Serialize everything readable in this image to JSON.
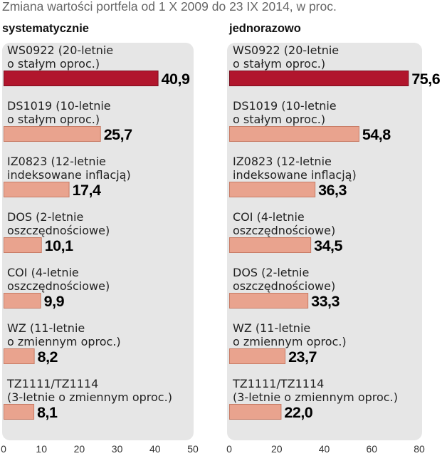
{
  "title": "Zmiana wartości portfela od 1 X 2009 do 23 IX 2014, w proc.",
  "colors": {
    "bar": "#e9a38e",
    "bar_outline": "#c87c66",
    "highlight": "#b1162d",
    "highlight_outline": "#7a0d1d",
    "panel_background": "#e6e6e6"
  },
  "chart_data": [
    {
      "type": "bar",
      "orientation": "horizontal",
      "title": "systematycznie",
      "categories": [
        "WS0922 (20-letnie\no stałym oproc.)",
        "DS1019 (10-letnie\no stałym oproc.)",
        "IZ0823 (12-letnie\nindeksowane inflacją)",
        "DOS (2-letnie\noszczędnościowe)",
        "COI (4-letnie\noszczędnościowe)",
        "WZ (11-letnie\no zmiennym oproc.)",
        "TZ1111/TZ1114\n(3-letnie o zmiennym oproc.)"
      ],
      "values": [
        40.9,
        25.7,
        17.4,
        10.1,
        9.9,
        8.2,
        8.1
      ],
      "highlight_index": 0,
      "xlim": [
        0,
        50
      ],
      "xticks": [
        0,
        10,
        20,
        30,
        40,
        50
      ],
      "grid": false
    },
    {
      "type": "bar",
      "orientation": "horizontal",
      "title": "jednorazowo",
      "categories": [
        "WS0922 (20-letnie\no stałym oproc.)",
        "DS1019 (10-letnie\no stałym oproc.)",
        "IZ0823 (12-letnie\nindeksowane inflacją)",
        "COI (4-letnie\noszczędnościowe)",
        "DOS (2-letnie\noszczędnościowe)",
        "WZ (11-letnie\no zmiennym oproc.)",
        "TZ1111/TZ1114\n(3-letnie o zmiennym oproc.)"
      ],
      "values": [
        75.6,
        54.8,
        36.3,
        34.5,
        33.3,
        23.7,
        22.0
      ],
      "highlight_index": 0,
      "xlim": [
        0,
        80
      ],
      "xticks": [
        0,
        20,
        40,
        60,
        80
      ],
      "grid": false
    }
  ]
}
